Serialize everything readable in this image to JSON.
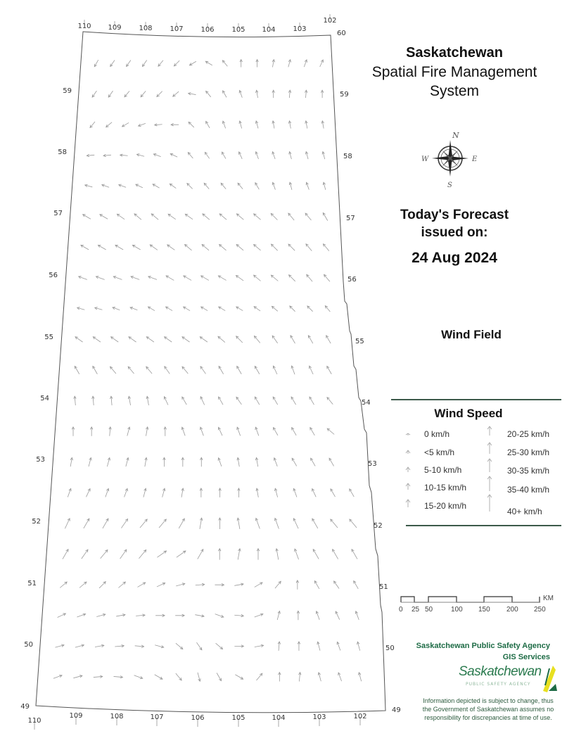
{
  "header": {
    "line1": "Saskatchewan",
    "line2": "Spatial Fire Management",
    "line3": "System"
  },
  "compass": {
    "n": "N",
    "e": "E",
    "s": "S",
    "w": "W"
  },
  "forecast": {
    "line1": "Today's Forecast",
    "line2": "issued on:",
    "date": "24 Aug 2024"
  },
  "layer_title": "Wind Field",
  "legend": {
    "title": "Wind Speed",
    "items": [
      "0 km/h",
      "<5 km/h",
      "5-10 km/h",
      "10-15 km/h",
      "15-20 km/h",
      "20-25 km/h",
      "25-30 km/h",
      "30-35 km/h",
      "35-40 km/h",
      "40+ km/h"
    ]
  },
  "scale_bar": {
    "unit": "KM",
    "ticks": [
      "0",
      "25",
      "50",
      "100",
      "150",
      "200",
      "250"
    ]
  },
  "agency": {
    "line1": "Saskatchewan Public Safety Agency",
    "line2": "GIS  Services",
    "logo_text": "Saskatchewan",
    "logo_sub": "PUBLIC SAFETY AGENCY"
  },
  "disclaimer": [
    "Information depicted is subject to change, thus",
    "the Government of Saskatchewan assumes no",
    "responsibility for discrepancies at time of use."
  ],
  "graticule": {
    "lon_top": [
      "110",
      "109",
      "108",
      "107",
      "106",
      "105",
      "104",
      "103",
      "102"
    ],
    "lon_bottom": [
      "110",
      "109",
      "108",
      "107",
      "106",
      "105",
      "104",
      "103",
      "102"
    ],
    "lat_left": [
      "59",
      "58",
      "57",
      "56",
      "55",
      "54",
      "53",
      "52",
      "51",
      "50",
      "49"
    ],
    "lat_right": [
      "60",
      "59",
      "58",
      "57",
      "56",
      "55",
      "54",
      "53",
      "52",
      "51",
      "50",
      "49"
    ]
  },
  "colors": {
    "boundary": "#555555",
    "arrow": "#9a9a9a",
    "legend_rule": "#3c5a4a",
    "agency_green": "#1d6b45",
    "logo_yellow": "#e8e020"
  },
  "wind_field": {
    "direction_convention": "degrees toward, 0 = north",
    "rows": [
      [
        210,
        215,
        215,
        215,
        220,
        225,
        240,
        300,
        320,
        0,
        0,
        10,
        15,
        20,
        25
      ],
      [
        215,
        215,
        220,
        220,
        225,
        230,
        280,
        320,
        330,
        340,
        350,
        0,
        5,
        5,
        0
      ],
      [
        220,
        230,
        240,
        250,
        265,
        270,
        315,
        330,
        340,
        345,
        345,
        350,
        350,
        350,
        350
      ],
      [
        265,
        265,
        275,
        285,
        290,
        295,
        320,
        325,
        330,
        335,
        340,
        340,
        345,
        345,
        345
      ],
      [
        285,
        290,
        290,
        295,
        300,
        305,
        315,
        320,
        320,
        320,
        330,
        340,
        345,
        340,
        345
      ],
      [
        300,
        300,
        305,
        310,
        310,
        305,
        305,
        310,
        310,
        310,
        310,
        315,
        320,
        320,
        330
      ],
      [
        300,
        300,
        300,
        300,
        305,
        305,
        310,
        310,
        310,
        310,
        310,
        315,
        315,
        320,
        320
      ],
      [
        290,
        290,
        290,
        290,
        290,
        300,
        300,
        300,
        300,
        305,
        310,
        310,
        315,
        320,
        320
      ],
      [
        285,
        285,
        290,
        290,
        300,
        300,
        300,
        300,
        300,
        300,
        305,
        310,
        315,
        315,
        320
      ],
      [
        305,
        305,
        305,
        305,
        305,
        305,
        305,
        305,
        310,
        315,
        320,
        325,
        330,
        330,
        330
      ],
      [
        330,
        330,
        320,
        320,
        320,
        325,
        320,
        325,
        330,
        330,
        330,
        335,
        340,
        335,
        330
      ],
      [
        355,
        355,
        355,
        350,
        350,
        335,
        330,
        335,
        330,
        325,
        330,
        330,
        330,
        330,
        320
      ],
      [
        0,
        0,
        5,
        15,
        10,
        0,
        340,
        340,
        335,
        340,
        340,
        330,
        330,
        330,
        310
      ],
      [
        10,
        15,
        15,
        15,
        10,
        0,
        0,
        0,
        340,
        350,
        350,
        340,
        330,
        330,
        330
      ],
      [
        20,
        25,
        20,
        20,
        15,
        15,
        10,
        0,
        0,
        0,
        350,
        345,
        340,
        335,
        330,
        330
      ],
      [
        25,
        30,
        30,
        35,
        40,
        40,
        30,
        10,
        0,
        350,
        340,
        340,
        335,
        330,
        320,
        320
      ],
      [
        30,
        35,
        40,
        35,
        40,
        55,
        55,
        30,
        0,
        10,
        0,
        350,
        340,
        330,
        330,
        330
      ],
      [
        50,
        50,
        45,
        50,
        60,
        65,
        75,
        85,
        90,
        80,
        60,
        40,
        0,
        330,
        325,
        330
      ],
      [
        65,
        70,
        75,
        80,
        85,
        90,
        90,
        100,
        110,
        95,
        70,
        15,
        0,
        340,
        335,
        340
      ],
      [
        75,
        75,
        80,
        85,
        95,
        105,
        130,
        145,
        130,
        90,
        80,
        5,
        0,
        345,
        340,
        345
      ],
      [
        70,
        75,
        85,
        95,
        110,
        120,
        140,
        165,
        150,
        120,
        40,
        0,
        5,
        345,
        340,
        345
      ]
    ],
    "row_speed_class": [
      "5-10 km/h",
      "5-10 km/h",
      "5-10 km/h",
      "5-10 km/h",
      "5-10 km/h",
      "10-15 km/h",
      "10-15 km/h",
      "10-15 km/h",
      "5-10 km/h",
      "10-15 km/h",
      "10-15 km/h",
      "10-15 km/h",
      "10-15 km/h",
      "10-15 km/h",
      "10-15 km/h",
      "15-20 km/h",
      "15-20 km/h",
      "10-15 km/h",
      "10-15 km/h",
      "10-15 km/h",
      "10-15 km/h"
    ]
  }
}
